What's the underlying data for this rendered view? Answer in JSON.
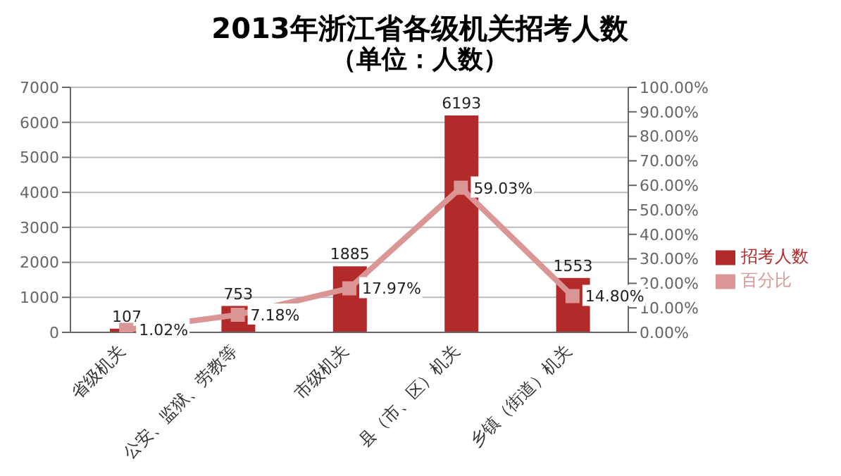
{
  "chart_data": {
    "type": "bar",
    "title": "2013年浙江省各级机关招考人数",
    "subtitle": "（单位：人数）",
    "categories": [
      "省级机关",
      "公安、监狱、劳教等",
      "市级机关",
      "县（市、区）机关",
      "乡镇（街道）机关"
    ],
    "series": [
      {
        "name": "招考人数",
        "color": "#b22a2a",
        "values": [
          107,
          753,
          1885,
          6193,
          1553
        ],
        "value_labels": [
          "107",
          "753",
          "1885",
          "6193",
          "1553"
        ]
      },
      {
        "name": "百分比",
        "type": "line",
        "axis": "y2",
        "color": "#d99694",
        "marker": "square",
        "values": [
          1.02,
          7.18,
          17.97,
          59.03,
          14.8
        ],
        "value_labels": [
          "1.02%",
          "7.18%",
          "17.97%",
          "59.03%",
          "14.80%"
        ]
      }
    ],
    "ylim": [
      0,
      7000
    ],
    "yticks": [
      0,
      1000,
      2000,
      3000,
      4000,
      5000,
      6000,
      7000
    ],
    "y2lim": [
      0,
      100
    ],
    "y2ticks": [
      {
        "value": 0,
        "label": "0.00%"
      },
      {
        "value": 10,
        "label": "10.00%"
      },
      {
        "value": 20,
        "label": "20.00%"
      },
      {
        "value": 30,
        "label": "30.00%"
      },
      {
        "value": 40,
        "label": "40.00%"
      },
      {
        "value": 50,
        "label": "50.00%"
      },
      {
        "value": 60,
        "label": "60.00%"
      },
      {
        "value": 70,
        "label": "70.00%"
      },
      {
        "value": 80,
        "label": "80.00%"
      },
      {
        "value": 90,
        "label": "90.00%"
      },
      {
        "value": 100,
        "label": "100.00%"
      }
    ],
    "grid": "y",
    "legend": "right"
  }
}
